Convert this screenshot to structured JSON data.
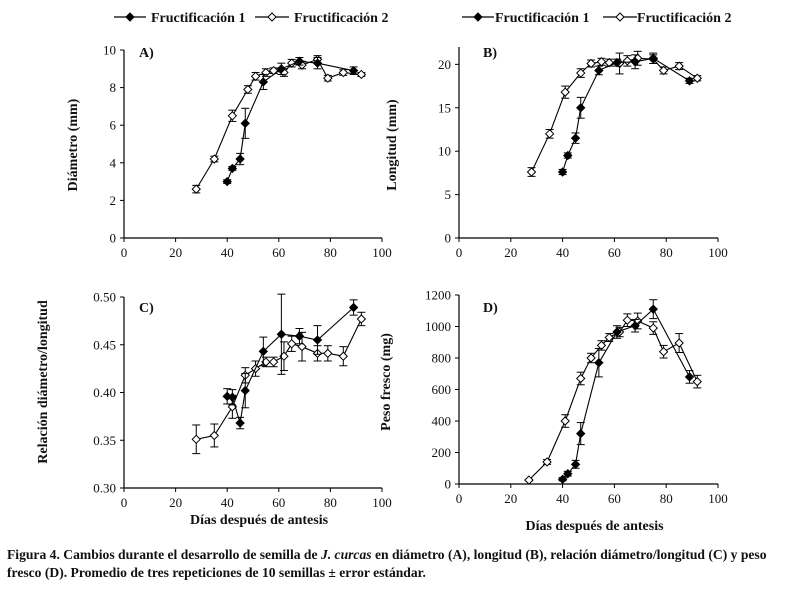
{
  "legend": [
    {
      "series": "Fructificación 1",
      "marker": "filled-diamond"
    },
    {
      "series": "Fructificación 2",
      "marker": "open-diamond"
    }
  ],
  "caption": {
    "label": "Figura 4.",
    "text_a": "Cambios durante el desarrollo de semilla de",
    "species": "J. curcas",
    "text_b": "en diámetro (A), longitud (B), relación diámetro/longitud (C) y peso fresco (D). Promedio de tres repeticiones de 10 semillas ± error estándar."
  },
  "chart_data": [
    {
      "type": "line",
      "panel": "A)",
      "title": "",
      "xlabel": "",
      "ylabel": "Diámetro (mm)",
      "xlim": [
        0,
        100
      ],
      "xticks": [
        0,
        20,
        40,
        60,
        80,
        100
      ],
      "ylim": [
        0,
        10
      ],
      "yticks": [
        0,
        2,
        4,
        6,
        8,
        10
      ],
      "series": [
        {
          "name": "Fructificación 1",
          "marker": "filled",
          "x": [
            40,
            42,
            45,
            47,
            54,
            61,
            68,
            75,
            89
          ],
          "y": [
            3.0,
            3.7,
            4.2,
            6.1,
            8.3,
            9.0,
            9.4,
            9.3,
            8.9
          ],
          "err": [
            0.1,
            0.1,
            0.3,
            0.8,
            0.4,
            0.3,
            0.2,
            0.3,
            0.2
          ]
        },
        {
          "name": "Fructificación 2",
          "marker": "open",
          "x": [
            28,
            35,
            42,
            48,
            51,
            55,
            58,
            62,
            65,
            69,
            75,
            79,
            85,
            92
          ],
          "y": [
            2.6,
            4.2,
            6.5,
            7.9,
            8.6,
            8.8,
            8.9,
            8.8,
            9.3,
            9.2,
            9.5,
            8.5,
            8.8,
            8.7
          ],
          "err": [
            0.2,
            0.15,
            0.3,
            0.2,
            0.2,
            0.2,
            0.15,
            0.2,
            0.2,
            0.2,
            0.2,
            0.15,
            0.15,
            0.1
          ]
        }
      ]
    },
    {
      "type": "line",
      "panel": "B)",
      "title": "",
      "xlabel": "",
      "ylabel": "Longitud (mm)",
      "xlim": [
        0,
        100
      ],
      "xticks": [
        0,
        20,
        40,
        60,
        80,
        100
      ],
      "ylim": [
        0,
        22
      ],
      "yticks": [
        0,
        5,
        10,
        15,
        20
      ],
      "series": [
        {
          "name": "Fructificación 1",
          "marker": "filled",
          "x": [
            40,
            42,
            45,
            47,
            54,
            61,
            68,
            75,
            89
          ],
          "y": [
            7.6,
            9.5,
            11.5,
            15.0,
            19.3,
            20.2,
            20.3,
            20.7,
            18.1
          ],
          "err": [
            0.3,
            0.3,
            0.6,
            1.2,
            0.5,
            0.4,
            0.8,
            0.6,
            0.3
          ]
        },
        {
          "name": "Fructificación 2",
          "marker": "open",
          "x": [
            28,
            35,
            41,
            47,
            51,
            55,
            58,
            62,
            65,
            69,
            75,
            79,
            85,
            92
          ],
          "y": [
            7.6,
            12.0,
            16.8,
            19.0,
            20.1,
            20.3,
            20.2,
            20.1,
            20.4,
            20.7,
            20.6,
            19.3,
            19.8,
            18.4
          ],
          "err": [
            0.5,
            0.5,
            0.7,
            0.5,
            0.4,
            0.4,
            0.4,
            1.2,
            0.6,
            0.8,
            0.5,
            0.4,
            0.4,
            0.3
          ]
        }
      ]
    },
    {
      "type": "line",
      "panel": "C)",
      "title": "",
      "xlabel": "Días después de antesis",
      "ylabel": "Relación diámetro/longitud",
      "xlim": [
        0,
        100
      ],
      "xticks": [
        0,
        20,
        40,
        60,
        80,
        100
      ],
      "ylim": [
        0.3,
        0.5
      ],
      "yticks": [
        0.3,
        0.35,
        0.4,
        0.45,
        0.5
      ],
      "series": [
        {
          "name": "Fructificación 1",
          "marker": "filled",
          "x": [
            40,
            42,
            45,
            47,
            54,
            61,
            68,
            75,
            89
          ],
          "y": [
            0.396,
            0.395,
            0.368,
            0.402,
            0.443,
            0.461,
            0.459,
            0.455,
            0.489
          ],
          "err": [
            0.008,
            0.008,
            0.006,
            0.018,
            0.015,
            0.042,
            0.008,
            0.015,
            0.008
          ]
        },
        {
          "name": "Fructificación 2",
          "marker": "open",
          "x": [
            28,
            35,
            42,
            47,
            51,
            55,
            58,
            62,
            65,
            69,
            75,
            79,
            85,
            92
          ],
          "y": [
            0.351,
            0.355,
            0.385,
            0.418,
            0.425,
            0.432,
            0.432,
            0.438,
            0.451,
            0.448,
            0.441,
            0.441,
            0.438,
            0.477
          ],
          "err": [
            0.015,
            0.012,
            0.012,
            0.008,
            0.008,
            0.005,
            0.005,
            0.015,
            0.008,
            0.015,
            0.008,
            0.008,
            0.01,
            0.007
          ]
        }
      ]
    },
    {
      "type": "line",
      "panel": "D)",
      "title": "",
      "xlabel": "Días después de antesis",
      "ylabel": "Peso fresco (mg)",
      "xlim": [
        0,
        100
      ],
      "xticks": [
        0,
        20,
        40,
        60,
        80,
        100
      ],
      "ylim": [
        0,
        1200
      ],
      "yticks": [
        0,
        200,
        400,
        600,
        800,
        1000,
        1200
      ],
      "series": [
        {
          "name": "Fructificación 1",
          "marker": "filled",
          "x": [
            40,
            42,
            45,
            47,
            54,
            61,
            68,
            75,
            89
          ],
          "y": [
            30,
            65,
            125,
            320,
            770,
            965,
            1005,
            1110,
            680
          ],
          "err": [
            10,
            15,
            25,
            70,
            90,
            40,
            40,
            60,
            40
          ]
        },
        {
          "name": "Fructificación 2",
          "marker": "open",
          "x": [
            27,
            34,
            41,
            47,
            51,
            55,
            58,
            62,
            65,
            69,
            75,
            79,
            85,
            92
          ],
          "y": [
            25,
            140,
            400,
            670,
            800,
            880,
            930,
            965,
            1040,
            1035,
            990,
            840,
            895,
            650
          ],
          "err": [
            5,
            15,
            40,
            40,
            30,
            30,
            25,
            30,
            40,
            50,
            40,
            40,
            60,
            40
          ]
        }
      ]
    }
  ]
}
